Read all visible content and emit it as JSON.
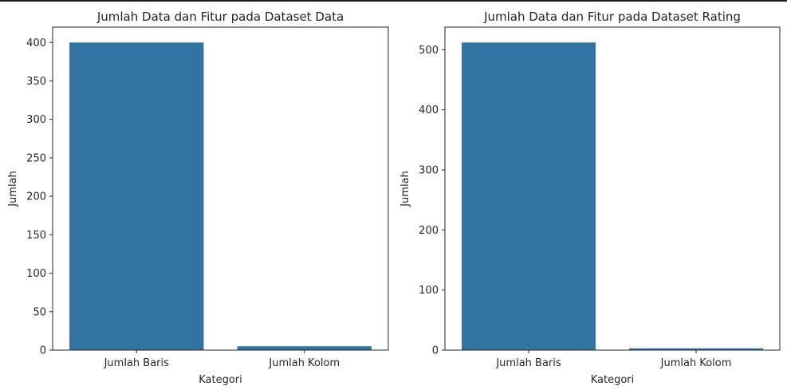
{
  "chart_data": [
    {
      "type": "bar",
      "title": "Jumlah Data dan Fitur pada Dataset Data",
      "xlabel": "Kategori",
      "ylabel": "Jumlah",
      "categories": [
        "Jumlah Baris",
        "Jumlah Kolom"
      ],
      "values": [
        400,
        5
      ],
      "ylim": [
        0,
        420
      ],
      "yticks": [
        0,
        50,
        100,
        150,
        200,
        250,
        300,
        350,
        400
      ],
      "grid": false,
      "bar_color": "#3274a1"
    },
    {
      "type": "bar",
      "title": "Jumlah Data dan Fitur pada Dataset Rating",
      "xlabel": "Kategori",
      "ylabel": "Jumlah",
      "categories": [
        "Jumlah Baris",
        "Jumlah Kolom"
      ],
      "values": [
        512,
        3
      ],
      "ylim": [
        0,
        537.6
      ],
      "yticks": [
        0,
        100,
        200,
        300,
        400,
        500
      ],
      "grid": false,
      "bar_color": "#3274a1"
    }
  ]
}
